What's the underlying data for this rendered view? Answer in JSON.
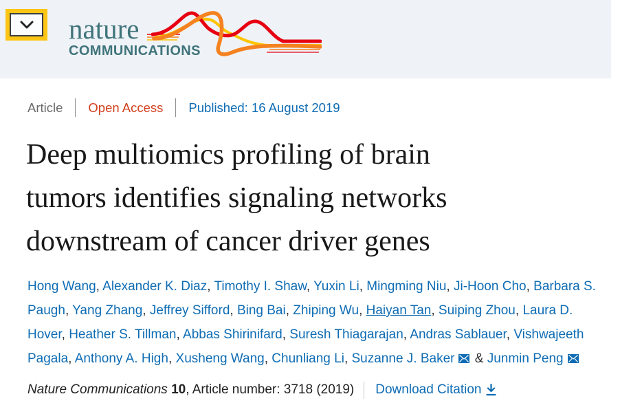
{
  "page": {
    "header_background": "#eff3f7",
    "background": "#ffffff"
  },
  "header": {
    "expander_icon": "chevron-down-icon",
    "logo": {
      "line1": "nature",
      "line2": "COMMUNICATIONS",
      "teal": "#40747b",
      "wave_colors": [
        "#e60012",
        "#f58220",
        "#fdc500"
      ]
    }
  },
  "meta": {
    "article_type": "Article",
    "access_label": "Open Access",
    "published": "Published: 16 August 2019"
  },
  "article": {
    "title": "Deep multiomics profiling of brain\ntumors identifies signaling networks\ndownstream of cancer driver genes"
  },
  "authors": {
    "ampersand": "&",
    "list": [
      {
        "name": "Hong Wang"
      },
      {
        "name": "Alexander K. Diaz"
      },
      {
        "name": "Timothy I. Shaw"
      },
      {
        "name": "Yuxin Li"
      },
      {
        "name": "Mingming Niu"
      },
      {
        "name": "Ji-Hoon Cho"
      },
      {
        "name": "Barbara S. Paugh"
      },
      {
        "name": "Yang Zhang"
      },
      {
        "name": "Jeffrey Sifford"
      },
      {
        "name": "Bing Bai"
      },
      {
        "name": "Zhiping Wu"
      },
      {
        "name": "Haiyan Tan",
        "underline": true
      },
      {
        "name": "Suiping Zhou"
      },
      {
        "name": "Laura D. Hover"
      },
      {
        "name": "Heather S. Tillman"
      },
      {
        "name": "Abbas Shirinifard"
      },
      {
        "name": "Suresh Thiagarajan"
      },
      {
        "name": "Andras Sablauer"
      },
      {
        "name": "Vishwajeeth Pagala"
      },
      {
        "name": "Anthony A. High"
      },
      {
        "name": "Xusheng Wang"
      },
      {
        "name": "Chunliang Li"
      },
      {
        "name": "Suzanne J. Baker",
        "email": true
      },
      {
        "name": "Junmin Peng",
        "email": true
      }
    ]
  },
  "citation": {
    "journal": "Nature Communications",
    "volume": "10",
    "rest": ", Article number: 3718 (2019)",
    "download_label": "Download Citation",
    "download_icon": "download-icon",
    "email_icon": "envelope-icon"
  },
  "colors": {
    "link_blue": "#0e6cb4",
    "open_access_red": "#d2411e",
    "article_gray": "#6b6b6b",
    "accent_yellow": "#fdc514"
  }
}
